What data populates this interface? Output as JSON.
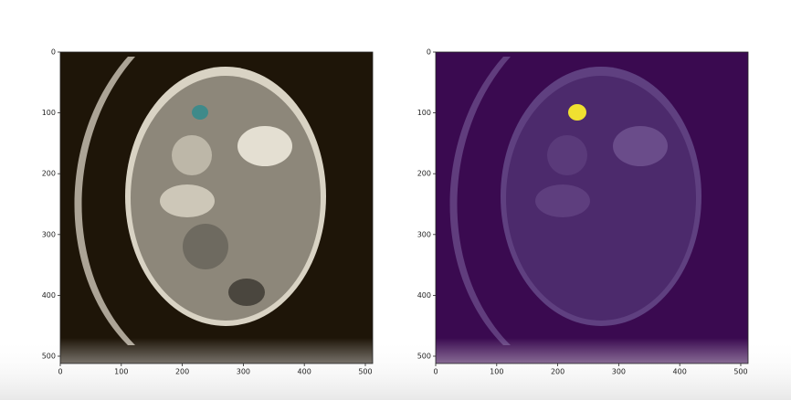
{
  "chart_data": [
    {
      "type": "image",
      "xlim": [
        0,
        512
      ],
      "ylim": [
        512,
        0
      ],
      "xticks": [
        0,
        100,
        200,
        300,
        400,
        500
      ],
      "yticks": [
        0,
        100,
        200,
        300,
        400,
        500
      ]
    },
    {
      "type": "image",
      "xlim": [
        0,
        512
      ],
      "ylim": [
        512,
        0
      ],
      "xticks": [
        0,
        100,
        200,
        300,
        400,
        500
      ],
      "yticks": [
        0,
        100,
        200,
        300,
        400,
        500
      ]
    }
  ]
}
